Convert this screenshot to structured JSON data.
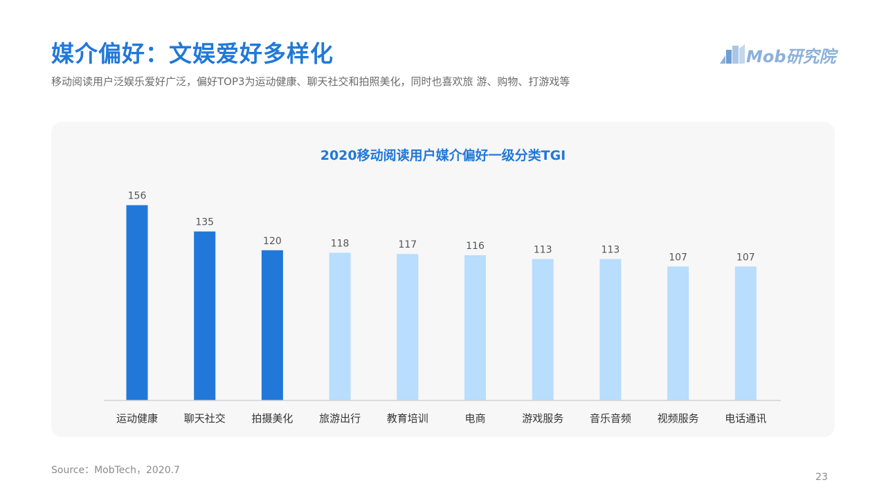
{
  "header": {
    "title": "媒介偏好：文娱爱好多样化",
    "subtitle": "移动阅读用户泛娱乐爱好广泛，偏好TOP3为运动健康、聊天社交和拍照美化，同时也喜欢旅 游、购物、打游戏等"
  },
  "logo": {
    "text": "Mob研究院",
    "icon": "mob-building-logo"
  },
  "chart_data": {
    "type": "bar",
    "title": "2020移动阅读用户媒介偏好一级分类TGI",
    "categories": [
      "运动健康",
      "聊天社交",
      "拍摄美化",
      "旅游出行",
      "教育培训",
      "电商",
      "游戏服务",
      "音乐音频",
      "视频服务",
      "电话通讯"
    ],
    "values": [
      156,
      135,
      120,
      118,
      117,
      116,
      113,
      113,
      107,
      107
    ],
    "highlight_top": 3,
    "colors": {
      "highlight": "#2178d8",
      "normal": "#b8ddfd"
    },
    "ylim": [
      0,
      170
    ],
    "grid": false,
    "legend": "none",
    "xlabel": "",
    "ylabel": ""
  },
  "footer": {
    "source": "Source：MobTech，2020.7",
    "page_number": "23"
  }
}
